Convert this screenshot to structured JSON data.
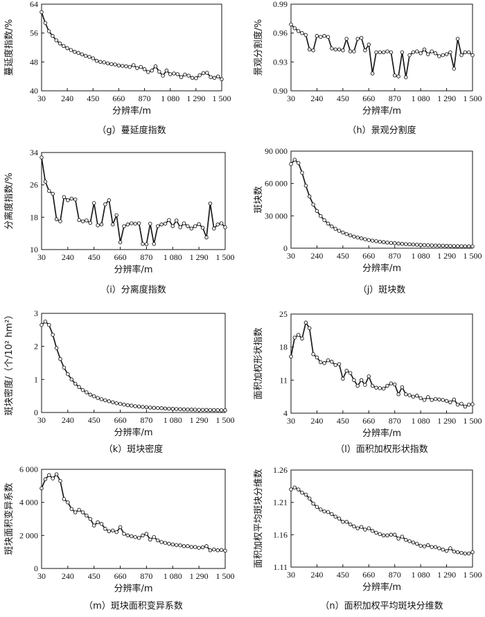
{
  "chart_data": [
    {
      "id": "g",
      "type": "line",
      "caption": "（g）蔓延度指数",
      "xlabel": "分辨率/m",
      "ylabel": "蔓延度指数/%",
      "xlim": [
        30,
        1500
      ],
      "ylim": [
        40,
        64
      ],
      "x_tick_labels": [
        "30",
        "240",
        "450",
        "660",
        "870",
        "1 080",
        "1 290",
        "1 500"
      ],
      "y_tick_labels": [
        "40",
        "48",
        "56",
        "64"
      ],
      "x": [
        30,
        60,
        90,
        120,
        150,
        180,
        210,
        240,
        270,
        300,
        330,
        360,
        390,
        420,
        450,
        480,
        510,
        540,
        570,
        600,
        630,
        660,
        690,
        720,
        750,
        780,
        810,
        840,
        870,
        900,
        930,
        960,
        990,
        1020,
        1050,
        1080,
        1110,
        1140,
        1170,
        1200,
        1230,
        1260,
        1290,
        1320,
        1350,
        1380,
        1410,
        1440,
        1470,
        1500
      ],
      "values": [
        61.8,
        58.8,
        56.5,
        55.2,
        54.0,
        53.1,
        52.4,
        51.8,
        51.3,
        50.8,
        50.5,
        50.1,
        49.7,
        49.4,
        49.0,
        48.3,
        48.0,
        47.9,
        47.6,
        47.4,
        47.3,
        47.0,
        46.9,
        46.8,
        46.6,
        47.1,
        46.3,
        46.6,
        46.0,
        45.2,
        45.6,
        46.8,
        45.3,
        44.2,
        45.6,
        44.6,
        44.8,
        44.6,
        43.8,
        44.5,
        44.2,
        43.6,
        43.5,
        44.3,
        44.9,
        45.0,
        43.8,
        43.6,
        44.0,
        43.2
      ]
    },
    {
      "id": "h",
      "type": "line",
      "caption": "（h）景观分割度",
      "xlabel": "分辨率/m",
      "ylabel": "景观分割度/%",
      "xlim": [
        30,
        1500
      ],
      "ylim": [
        0.9,
        0.99
      ],
      "x_tick_labels": [
        "30",
        "240",
        "450",
        "660",
        "870",
        "1 080",
        "1 290",
        "1 500"
      ],
      "y_tick_labels": [
        "0.90",
        "0.93",
        "0.96",
        "0.99"
      ],
      "x": [
        30,
        60,
        90,
        120,
        150,
        180,
        210,
        240,
        270,
        300,
        330,
        360,
        390,
        420,
        450,
        480,
        510,
        540,
        570,
        600,
        630,
        660,
        690,
        720,
        750,
        780,
        810,
        840,
        870,
        900,
        930,
        960,
        990,
        1020,
        1050,
        1080,
        1110,
        1140,
        1170,
        1200,
        1230,
        1260,
        1290,
        1320,
        1350,
        1380,
        1410,
        1440,
        1470,
        1500
      ],
      "values": [
        0.969,
        0.965,
        0.962,
        0.96,
        0.958,
        0.943,
        0.942,
        0.957,
        0.956,
        0.957,
        0.956,
        0.944,
        0.943,
        0.943,
        0.942,
        0.954,
        0.941,
        0.941,
        0.954,
        0.955,
        0.942,
        0.948,
        0.918,
        0.94,
        0.94,
        0.94,
        0.941,
        0.94,
        0.916,
        0.915,
        0.94,
        0.914,
        0.937,
        0.94,
        0.941,
        0.939,
        0.943,
        0.938,
        0.941,
        0.939,
        0.936,
        0.937,
        0.938,
        0.94,
        0.923,
        0.954,
        0.937,
        0.94,
        0.94,
        0.937
      ]
    },
    {
      "id": "i",
      "type": "line",
      "caption": "（i）分离度指数",
      "xlabel": "分辨率/m",
      "ylabel": "分离度指数/%",
      "xlim": [
        30,
        1500
      ],
      "ylim": [
        10,
        34
      ],
      "x_tick_labels": [
        "30",
        "240",
        "450",
        "660",
        "870",
        "1 080",
        "1 290",
        "1 500"
      ],
      "y_tick_labels": [
        "10",
        "18",
        "26",
        "34"
      ],
      "x": [
        30,
        60,
        90,
        120,
        150,
        180,
        210,
        240,
        270,
        300,
        330,
        360,
        390,
        420,
        450,
        480,
        510,
        540,
        570,
        600,
        630,
        660,
        690,
        720,
        750,
        780,
        810,
        840,
        870,
        900,
        930,
        960,
        990,
        1020,
        1050,
        1080,
        1110,
        1140,
        1170,
        1200,
        1230,
        1260,
        1290,
        1320,
        1350,
        1380,
        1410,
        1440,
        1470,
        1500
      ],
      "values": [
        32.8,
        26.8,
        24.5,
        23.8,
        17.5,
        17.0,
        23.0,
        22.2,
        22.6,
        22.4,
        17.3,
        17.0,
        17.2,
        16.6,
        21.5,
        16.0,
        16.2,
        21.2,
        22.2,
        16.2,
        18.5,
        11.8,
        15.8,
        16.2,
        16.5,
        16.4,
        16.5,
        11.4,
        11.3,
        16.4,
        11.4,
        15.8,
        16.2,
        16.4,
        17.3,
        15.8,
        17.2,
        15.5,
        16.5,
        15.8,
        15.2,
        15.8,
        16.3,
        15.4,
        13.0,
        21.4,
        15.2,
        16.2,
        16.5,
        15.5
      ]
    },
    {
      "id": "j",
      "type": "line",
      "caption": "（j）斑块数",
      "xlabel": "分辨率/m",
      "ylabel": "斑块数",
      "xlim": [
        30,
        1500
      ],
      "ylim": [
        0,
        90000
      ],
      "x_tick_labels": [
        "30",
        "240",
        "450",
        "660",
        "870",
        "1 080",
        "1 290",
        "1 500"
      ],
      "y_tick_labels": [
        "0",
        "30 000",
        "60 000",
        "90 000"
      ],
      "x": [
        30,
        60,
        90,
        120,
        150,
        180,
        210,
        240,
        270,
        300,
        330,
        360,
        390,
        420,
        450,
        480,
        510,
        540,
        570,
        600,
        630,
        660,
        690,
        720,
        750,
        780,
        810,
        840,
        870,
        900,
        930,
        960,
        990,
        1020,
        1050,
        1080,
        1110,
        1140,
        1170,
        1200,
        1230,
        1260,
        1290,
        1320,
        1350,
        1380,
        1410,
        1440,
        1470,
        1500
      ],
      "values": [
        78000,
        82000,
        79000,
        70000,
        58000,
        48000,
        40500,
        34500,
        29800,
        26000,
        22800,
        20200,
        18000,
        16100,
        14500,
        13100,
        11900,
        10800,
        9900,
        9100,
        8300,
        7600,
        7000,
        6500,
        6000,
        5600,
        5200,
        4900,
        4600,
        4300,
        4000,
        3800,
        3600,
        3400,
        3200,
        3050,
        2900,
        2750,
        2600,
        2500,
        2400,
        2300,
        2200,
        2100,
        2000,
        1950,
        1880,
        1820,
        1760,
        1700
      ]
    },
    {
      "id": "k",
      "type": "line",
      "caption": "（k）斑块密度",
      "xlabel": "分辨率/m",
      "ylabel": "斑块密度/（个/10² hm²）",
      "xlim": [
        30,
        1500
      ],
      "ylim": [
        0,
        3
      ],
      "x_tick_labels": [
        "30",
        "240",
        "450",
        "660",
        "870",
        "1 080",
        "1 290",
        "1 500"
      ],
      "y_tick_labels": [
        "0",
        "1",
        "2",
        "3"
      ],
      "x": [
        30,
        60,
        90,
        120,
        150,
        180,
        210,
        240,
        270,
        300,
        330,
        360,
        390,
        420,
        450,
        480,
        510,
        540,
        570,
        600,
        630,
        660,
        690,
        720,
        750,
        780,
        810,
        840,
        870,
        900,
        930,
        960,
        990,
        1020,
        1050,
        1080,
        1110,
        1140,
        1170,
        1200,
        1230,
        1260,
        1290,
        1320,
        1350,
        1380,
        1410,
        1440,
        1470,
        1500
      ],
      "values": [
        2.65,
        2.75,
        2.65,
        2.35,
        1.95,
        1.62,
        1.36,
        1.16,
        1.0,
        0.87,
        0.77,
        0.68,
        0.61,
        0.54,
        0.49,
        0.44,
        0.4,
        0.37,
        0.34,
        0.31,
        0.28,
        0.26,
        0.24,
        0.22,
        0.21,
        0.19,
        0.18,
        0.17,
        0.16,
        0.15,
        0.14,
        0.135,
        0.13,
        0.12,
        0.115,
        0.11,
        0.105,
        0.1,
        0.095,
        0.09,
        0.088,
        0.085,
        0.082,
        0.08,
        0.078,
        0.076,
        0.074,
        0.072,
        0.07,
        0.068
      ]
    },
    {
      "id": "l",
      "type": "line",
      "caption": "（l）面积加权形状指数",
      "xlabel": "分辨率/m",
      "ylabel": "面积加权形状指数",
      "xlim": [
        30,
        1500
      ],
      "ylim": [
        4,
        25
      ],
      "x_tick_labels": [
        "30",
        "240",
        "450",
        "660",
        "870",
        "1 080",
        "1 290",
        "1 500"
      ],
      "y_tick_labels": [
        "4",
        "11",
        "18",
        "25"
      ],
      "x": [
        30,
        60,
        90,
        120,
        150,
        180,
        210,
        240,
        270,
        300,
        330,
        360,
        390,
        420,
        450,
        480,
        510,
        540,
        570,
        600,
        630,
        660,
        690,
        720,
        750,
        780,
        810,
        840,
        870,
        900,
        930,
        960,
        990,
        1020,
        1050,
        1080,
        1110,
        1140,
        1170,
        1200,
        1230,
        1260,
        1290,
        1320,
        1350,
        1380,
        1410,
        1440,
        1470,
        1500
      ],
      "values": [
        16.0,
        20.0,
        20.6,
        19.8,
        23.2,
        22.0,
        16.5,
        15.8,
        14.8,
        14.6,
        15.2,
        14.9,
        14.2,
        14.4,
        11.3,
        13.0,
        12.5,
        11.0,
        9.8,
        11.0,
        10.0,
        11.8,
        9.8,
        9.4,
        9.3,
        9.2,
        9.8,
        10.3,
        10.1,
        8.0,
        9.5,
        8.0,
        7.8,
        7.5,
        7.7,
        7.2,
        6.8,
        7.4,
        6.8,
        7.0,
        6.9,
        6.8,
        6.6,
        6.3,
        6.9,
        5.8,
        6.0,
        5.4,
        5.8,
        5.9
      ]
    },
    {
      "id": "m",
      "type": "line",
      "caption": "（m）斑块面积变异系数",
      "xlabel": "分辨率/m",
      "ylabel": "斑块面积变异系数",
      "xlim": [
        30,
        1500
      ],
      "ylim": [
        0,
        6000
      ],
      "x_tick_labels": [
        "30",
        "240",
        "450",
        "660",
        "870",
        "1 080",
        "1 290",
        "1 500"
      ],
      "y_tick_labels": [
        "0",
        "2 000",
        "4 000",
        "6 000"
      ],
      "x": [
        30,
        60,
        90,
        120,
        150,
        180,
        210,
        240,
        270,
        300,
        330,
        360,
        390,
        420,
        450,
        480,
        510,
        540,
        570,
        600,
        630,
        660,
        690,
        720,
        750,
        780,
        810,
        840,
        870,
        900,
        930,
        960,
        990,
        1020,
        1050,
        1080,
        1110,
        1140,
        1170,
        1200,
        1230,
        1260,
        1290,
        1320,
        1350,
        1380,
        1410,
        1440,
        1470,
        1500
      ],
      "values": [
        4850,
        5400,
        5650,
        5450,
        5700,
        5300,
        4200,
        4000,
        3600,
        3400,
        3550,
        3400,
        3200,
        3000,
        2600,
        2800,
        2700,
        2400,
        2250,
        2300,
        2200,
        2500,
        2100,
        2000,
        1950,
        1900,
        1850,
        2000,
        2100,
        1750,
        1900,
        1700,
        1600,
        1550,
        1500,
        1450,
        1420,
        1400,
        1350,
        1350,
        1300,
        1300,
        1250,
        1280,
        1350,
        1100,
        1150,
        1100,
        1120,
        1080
      ]
    },
    {
      "id": "n",
      "type": "line",
      "caption": "（n）面积加权平均斑块分维数",
      "xlabel": "分辨率/m",
      "ylabel": "面积加权平均斑块分维数",
      "xlim": [
        30,
        1500
      ],
      "ylim": [
        1.11,
        1.26
      ],
      "x_tick_labels": [
        "30",
        "240",
        "450",
        "660",
        "870",
        "1 080",
        "1 290",
        "1 500"
      ],
      "y_tick_labels": [
        "1.11",
        "1.16",
        "1.21",
        "1.26"
      ],
      "x": [
        30,
        60,
        90,
        120,
        150,
        180,
        210,
        240,
        270,
        300,
        330,
        360,
        390,
        420,
        450,
        480,
        510,
        540,
        570,
        600,
        630,
        660,
        690,
        720,
        750,
        780,
        810,
        840,
        870,
        900,
        930,
        960,
        990,
        1020,
        1050,
        1080,
        1110,
        1140,
        1170,
        1200,
        1230,
        1260,
        1290,
        1320,
        1350,
        1380,
        1410,
        1440,
        1470,
        1500
      ],
      "values": [
        1.23,
        1.233,
        1.23,
        1.225,
        1.222,
        1.216,
        1.208,
        1.203,
        1.199,
        1.196,
        1.195,
        1.192,
        1.188,
        1.185,
        1.18,
        1.18,
        1.176,
        1.173,
        1.17,
        1.172,
        1.168,
        1.17,
        1.166,
        1.163,
        1.161,
        1.159,
        1.159,
        1.16,
        1.16,
        1.154,
        1.157,
        1.152,
        1.15,
        1.148,
        1.146,
        1.143,
        1.142,
        1.144,
        1.141,
        1.141,
        1.139,
        1.137,
        1.135,
        1.139,
        1.134,
        1.133,
        1.132,
        1.131,
        1.131,
        1.133
      ]
    }
  ]
}
